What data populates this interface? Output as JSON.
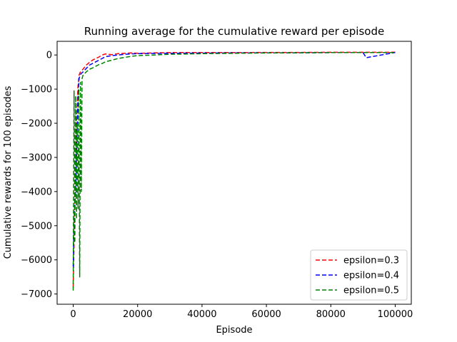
{
  "chart_data": {
    "type": "line",
    "title": "Running average for the cumulative reward per episode",
    "xlabel": "Episode",
    "ylabel": "Cumulative rewards for 100 episodes",
    "xlim": [
      -5000,
      105000
    ],
    "ylim": [
      -7300,
      400
    ],
    "xticks": [
      0,
      20000,
      40000,
      60000,
      80000,
      100000
    ],
    "yticks": [
      -7000,
      -6000,
      -5000,
      -4000,
      -3000,
      -2000,
      -1000,
      0
    ],
    "grid": false,
    "legend_position": "lower-right",
    "line_style": "dashed",
    "series": [
      {
        "name": "epsilon=0.3",
        "color": "#ff0000",
        "x": [
          0,
          300,
          600,
          900,
          1200,
          1500,
          1800,
          2100,
          2400,
          3000,
          4000,
          5000,
          6000,
          7000,
          8000,
          9000,
          10000,
          12000,
          14000,
          16000,
          18000,
          20000,
          25000,
          30000,
          40000,
          50000,
          60000,
          70000,
          80000,
          90000,
          100000
        ],
        "y": [
          -6800,
          -5300,
          -3800,
          -2500,
          -1500,
          -900,
          -600,
          -520,
          -480,
          -420,
          -300,
          -220,
          -150,
          -100,
          -60,
          0,
          30,
          10,
          40,
          50,
          60,
          50,
          60,
          70,
          70,
          70,
          75,
          75,
          78,
          78,
          80
        ]
      },
      {
        "name": "epsilon=0.4",
        "color": "#0000ff",
        "x": [
          0,
          300,
          600,
          900,
          1200,
          1500,
          1800,
          2100,
          2400,
          3000,
          4000,
          5000,
          6000,
          7000,
          8000,
          9000,
          10000,
          12000,
          14000,
          16000,
          18000,
          20000,
          25000,
          30000,
          40000,
          50000,
          60000,
          70000,
          80000,
          90000,
          91000,
          100000
        ],
        "y": [
          -6200,
          -4700,
          -4200,
          -3500,
          -2200,
          -1200,
          -700,
          -600,
          -550,
          -500,
          -400,
          -300,
          -250,
          -200,
          -150,
          -100,
          -50,
          -20,
          0,
          20,
          30,
          40,
          45,
          50,
          55,
          60,
          65,
          65,
          70,
          70,
          -80,
          75
        ]
      },
      {
        "name": "epsilon=0.5",
        "color": "#008000",
        "x": [
          0,
          250,
          500,
          750,
          1000,
          1250,
          1500,
          1750,
          2000,
          2250,
          2500,
          2750,
          3000,
          4000,
          5000,
          6000,
          7000,
          8000,
          9000,
          10000,
          12000,
          14000,
          16000,
          18000,
          20000,
          25000,
          30000,
          40000,
          50000,
          60000,
          70000,
          80000,
          90000,
          100000
        ],
        "y": [
          -6900,
          -1050,
          -5500,
          -1200,
          -4800,
          -2000,
          -4500,
          -1000,
          -6500,
          -800,
          -4000,
          -700,
          -600,
          -500,
          -420,
          -380,
          -330,
          -280,
          -250,
          -200,
          -150,
          -100,
          -70,
          -40,
          -20,
          0,
          20,
          40,
          50,
          60,
          65,
          70,
          70,
          72
        ]
      }
    ]
  }
}
